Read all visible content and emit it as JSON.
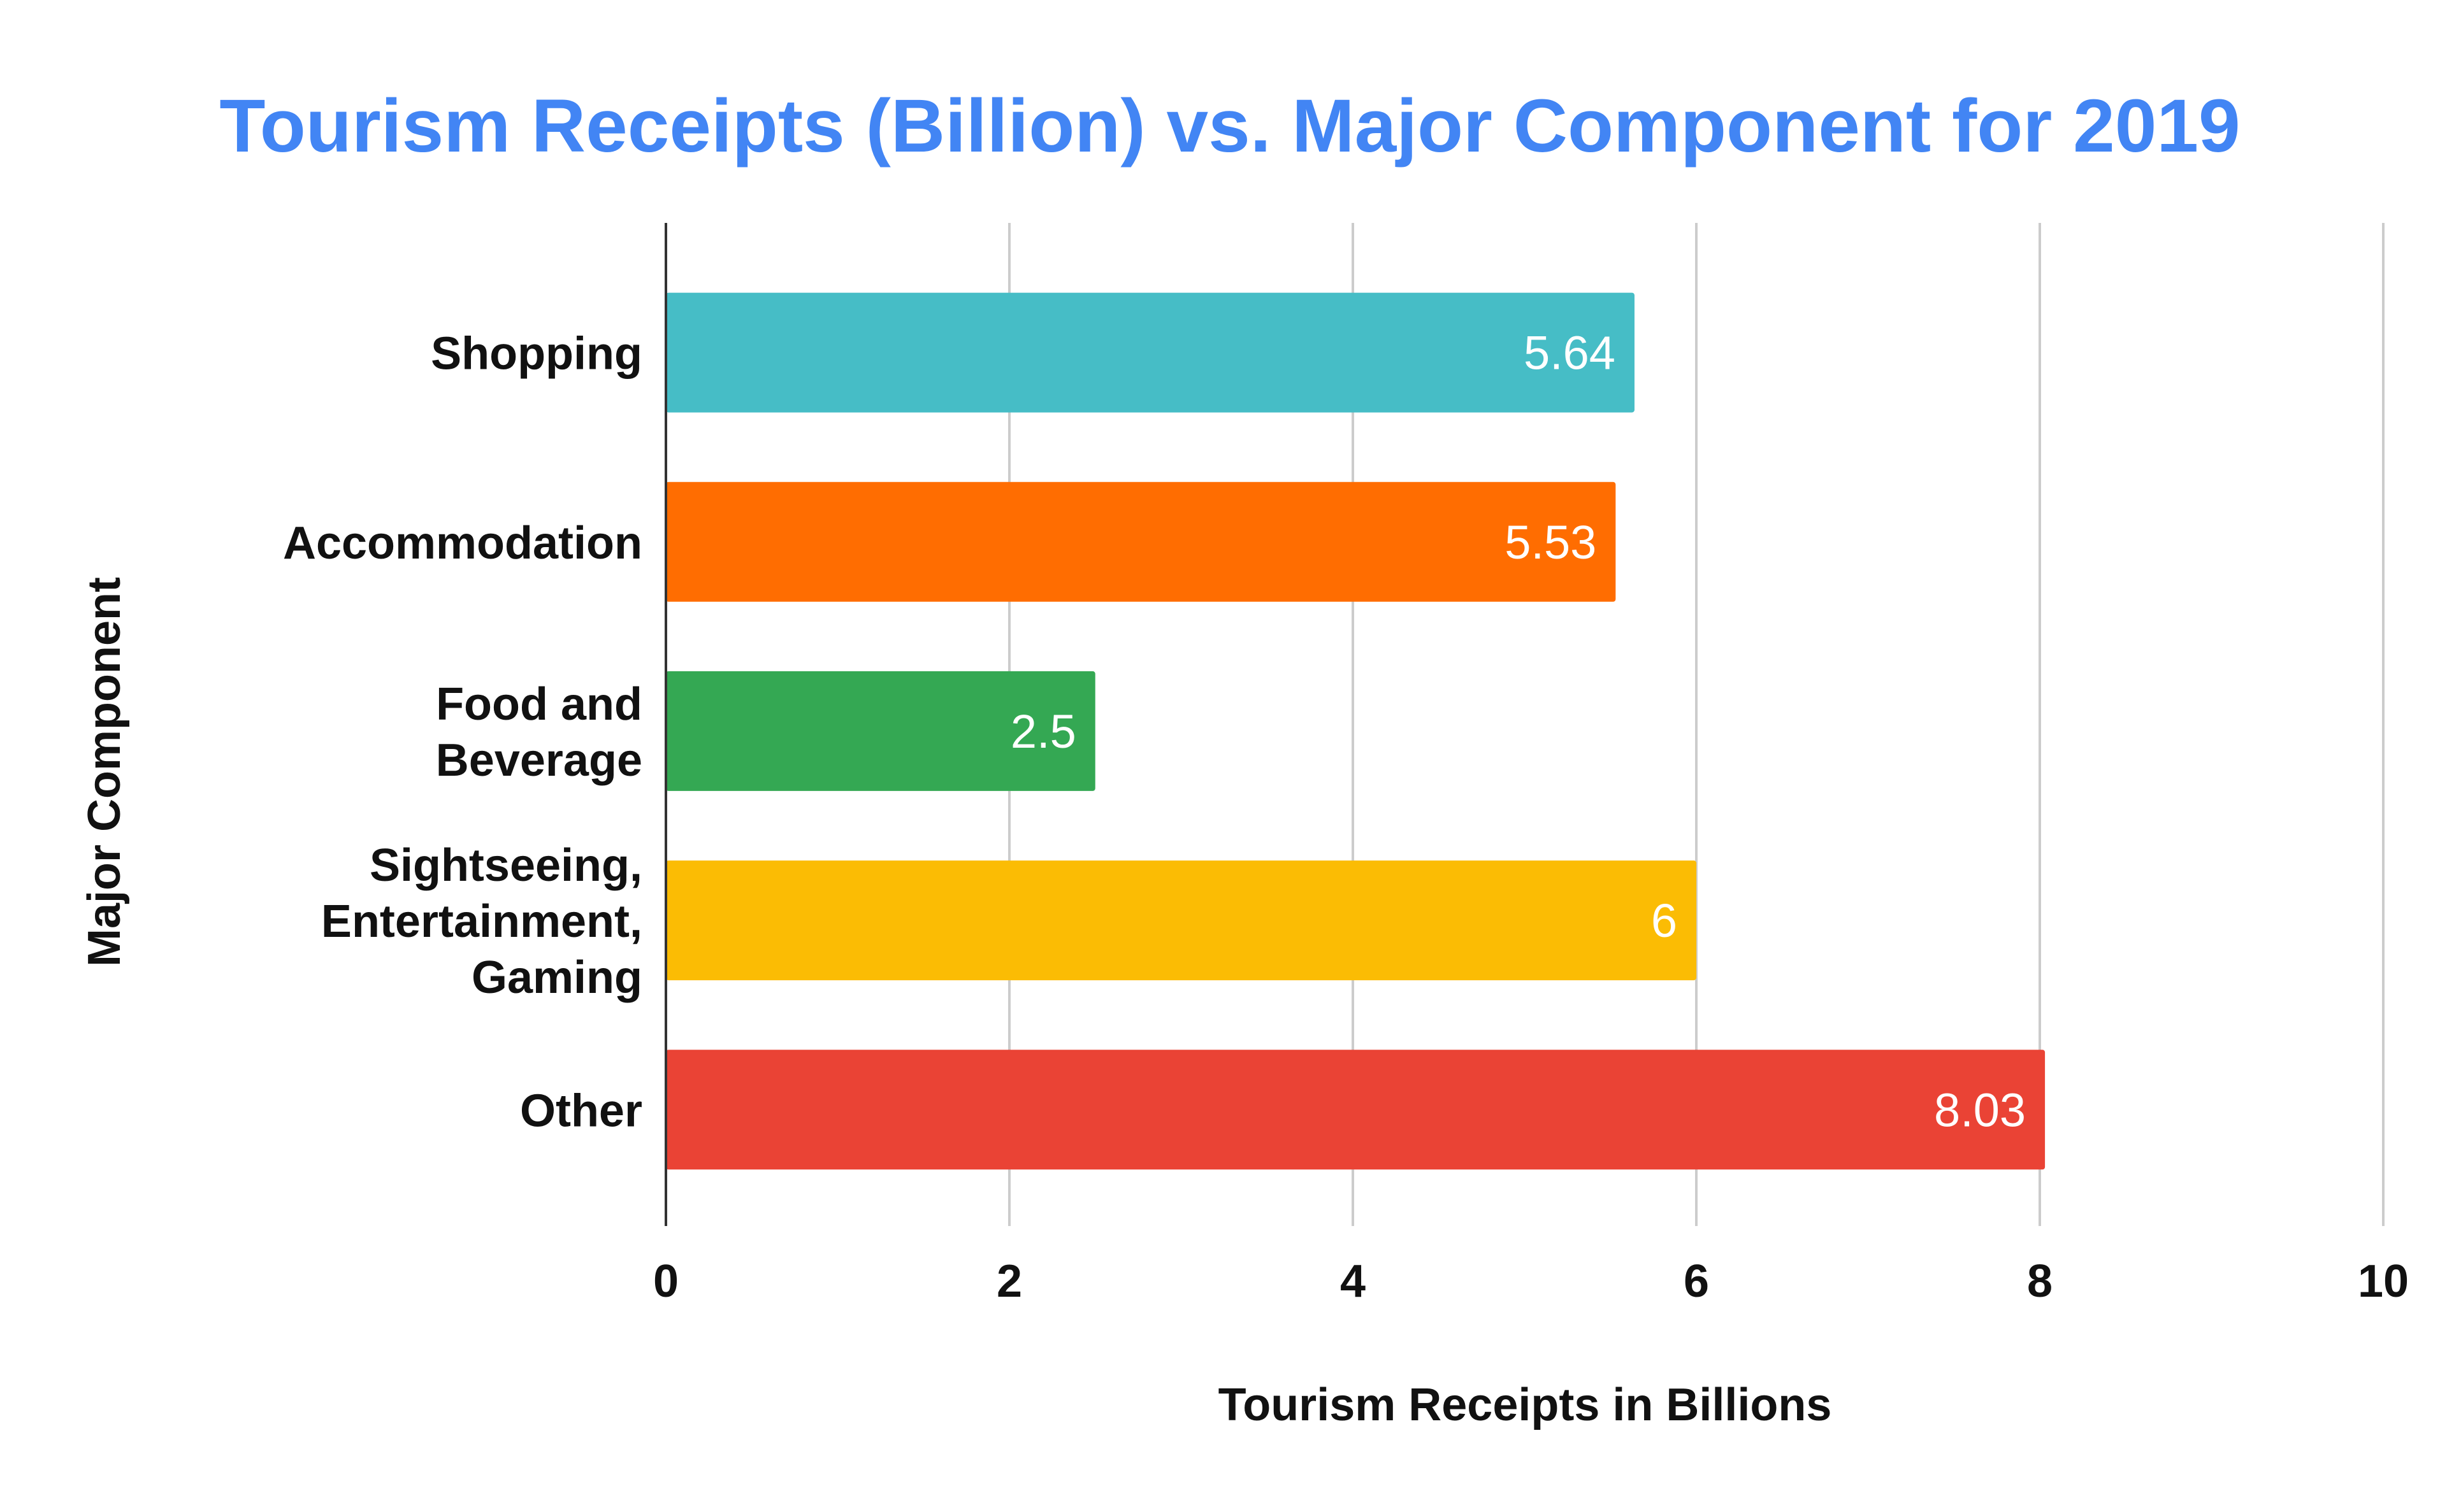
{
  "chart_data": {
    "type": "bar",
    "orientation": "horizontal",
    "title": "Tourism Receipts (Billion) vs. Major Component for 2019",
    "xlabel": "Tourism Receipts in Billions",
    "ylabel": "Major Component",
    "categories": [
      [
        "Shopping"
      ],
      [
        "Accommodation"
      ],
      [
        "Food and",
        "Beverage"
      ],
      [
        "Sightseeing,",
        "Entertainment,",
        "Gaming"
      ],
      [
        "Other"
      ]
    ],
    "values": [
      5.64,
      5.53,
      2.5,
      6,
      8.03
    ],
    "data_labels": [
      "5.64",
      "5.53",
      "2.5",
      "6",
      "8.03"
    ],
    "bar_colors": [
      "#46bdc6",
      "#ff6d01",
      "#34a853",
      "#fbbc04",
      "#ea4335"
    ],
    "xlim": [
      0,
      10
    ],
    "x_ticks": [
      0,
      2,
      4,
      6,
      8,
      10
    ],
    "grid": true,
    "legend": "none",
    "title_color": "#4285f4"
  }
}
